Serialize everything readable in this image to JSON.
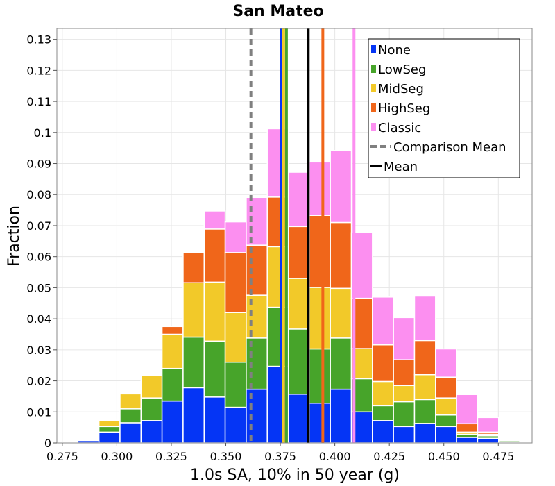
{
  "chart_data": {
    "type": "bar",
    "stacked": true,
    "title": "San Mateo",
    "xlabel": "1.0s SA, 10% in 50 year (g)",
    "ylabel": "Fraction",
    "xlim": [
      0.2725,
      0.4905
    ],
    "ylim": [
      0,
      0.1335
    ],
    "bin_width": 0.00965,
    "bin_starts": [
      0.2725,
      0.28215,
      0.2918,
      0.30145,
      0.3111,
      0.32075,
      0.3304,
      0.34005,
      0.3497,
      0.35935,
      0.369,
      0.37865,
      0.3883,
      0.39795,
      0.4076,
      0.41725,
      0.4269,
      0.43655,
      0.4462,
      0.45585,
      0.4655,
      0.47515,
      0.4848
    ],
    "x_ticks": [
      "0.275",
      "0.300",
      "0.325",
      "0.350",
      "0.375",
      "0.400",
      "0.425",
      "0.450",
      "0.475"
    ],
    "x_tick_values": [
      0.275,
      0.3,
      0.325,
      0.35,
      0.375,
      0.4,
      0.425,
      0.45,
      0.475
    ],
    "y_ticks": [
      "0",
      "0.01",
      "0.02",
      "0.03",
      "0.04",
      "0.05",
      "0.06",
      "0.07",
      "0.08",
      "0.09",
      "0.1",
      "0.11",
      "0.12",
      "0.13"
    ],
    "y_tick_values": [
      0,
      0.01,
      0.02,
      0.03,
      0.04,
      0.05,
      0.06,
      0.07,
      0.08,
      0.09,
      0.1,
      0.11,
      0.12,
      0.13
    ],
    "series": [
      {
        "name": "None",
        "color": "#0535f5",
        "values": [
          0.0002,
          0.0008,
          0.0035,
          0.0065,
          0.0072,
          0.0135,
          0.0178,
          0.0148,
          0.0115,
          0.0173,
          0.0247,
          0.0157,
          0.0128,
          0.0173,
          0.01,
          0.0072,
          0.0053,
          0.0063,
          0.0053,
          0.0018,
          0.0015,
          0.0002,
          0
        ]
      },
      {
        "name": "LowSeg",
        "color": "#47a42a",
        "values": [
          0,
          0.0002,
          0.0018,
          0.0045,
          0.0073,
          0.0105,
          0.0163,
          0.018,
          0.0145,
          0.0165,
          0.019,
          0.021,
          0.0175,
          0.0165,
          0.0107,
          0.0048,
          0.008,
          0.0077,
          0.0037,
          0.001,
          0.0008,
          0.0005,
          0
        ]
      },
      {
        "name": "MidSeg",
        "color": "#f2c929",
        "values": [
          0,
          0.0002,
          0.002,
          0.0048,
          0.0073,
          0.011,
          0.0175,
          0.019,
          0.016,
          0.0138,
          0.0195,
          0.0163,
          0.0198,
          0.016,
          0.0097,
          0.0078,
          0.0052,
          0.008,
          0.0055,
          0.0007,
          0.0005,
          0.0002,
          0
        ]
      },
      {
        "name": "HighSeg",
        "color": "#f0661a",
        "values": [
          0,
          0,
          0,
          0,
          0.0003,
          0.0025,
          0.0097,
          0.0171,
          0.0193,
          0.0161,
          0.016,
          0.0167,
          0.0232,
          0.0212,
          0.0162,
          0.0118,
          0.0083,
          0.011,
          0.0067,
          0.0027,
          0.0007,
          0.0001,
          0
        ]
      },
      {
        "name": "Classic",
        "color": "#fc8ff0",
        "values": [
          0,
          0,
          0,
          0,
          0,
          0,
          0,
          0.0058,
          0.0099,
          0.0154,
          0.022,
          0.0175,
          0.0172,
          0.0232,
          0.0211,
          0.0154,
          0.0136,
          0.0143,
          0.0091,
          0.0094,
          0.0047,
          0.0005,
          0
        ]
      }
    ],
    "vertical_lines": [
      {
        "name": "Comparison Mean",
        "x": 0.3615,
        "color": "#808080",
        "dashed": true
      },
      {
        "name": "Mean",
        "x": 0.3878,
        "color": "#000000",
        "dashed": false
      },
      {
        "name": "None mean",
        "x": 0.3755,
        "color": "#0535f5",
        "dashed": false,
        "legend": false
      },
      {
        "name": "MidSeg mean",
        "x": 0.3765,
        "color": "#f2c929",
        "dashed": false,
        "legend": false
      },
      {
        "name": "LowSeg mean",
        "x": 0.3778,
        "color": "#47a42a",
        "dashed": false,
        "legend": false
      },
      {
        "name": "HighSeg mean",
        "x": 0.3945,
        "color": "#f0661a",
        "dashed": false,
        "legend": false
      },
      {
        "name": "Classic mean",
        "x": 0.4088,
        "color": "#fc8ff0",
        "dashed": false,
        "legend": false
      }
    ],
    "legend": {
      "position": "top-right",
      "entries": [
        {
          "label": "None",
          "color": "#0535f5",
          "kind": "box"
        },
        {
          "label": "LowSeg",
          "color": "#47a42a",
          "kind": "box"
        },
        {
          "label": "MidSeg",
          "color": "#f2c929",
          "kind": "box"
        },
        {
          "label": "HighSeg",
          "color": "#f0661a",
          "kind": "box"
        },
        {
          "label": "Classic",
          "color": "#fc8ff0",
          "kind": "box"
        },
        {
          "label": "Comparison Mean",
          "color": "#808080",
          "kind": "dash"
        },
        {
          "label": "Mean",
          "color": "#000000",
          "kind": "line"
        }
      ]
    },
    "grid": true
  }
}
